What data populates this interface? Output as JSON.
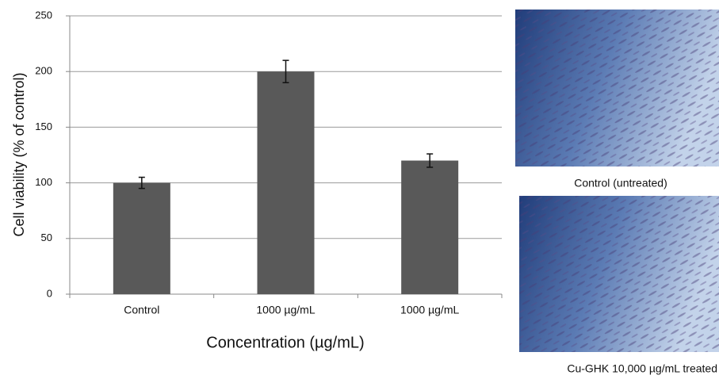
{
  "chart_data": {
    "type": "bar",
    "x_label": "Concentration (µg/mL)",
    "y_label": "Cell viability (% of control)",
    "categories": [
      "Control",
      "1000 µg/mL",
      "1000 µg/mL"
    ],
    "values": [
      100,
      200,
      120
    ],
    "errors": [
      5,
      10,
      6
    ],
    "color": "#595959",
    "ylim": [
      0,
      250
    ],
    "yticks": [
      0,
      50,
      100,
      150,
      200,
      250
    ],
    "grid": true
  },
  "panels": [
    {
      "caption": "Control (untreated)"
    },
    {
      "caption": "Cu-GHK 10,000 µg/mL treated"
    }
  ]
}
